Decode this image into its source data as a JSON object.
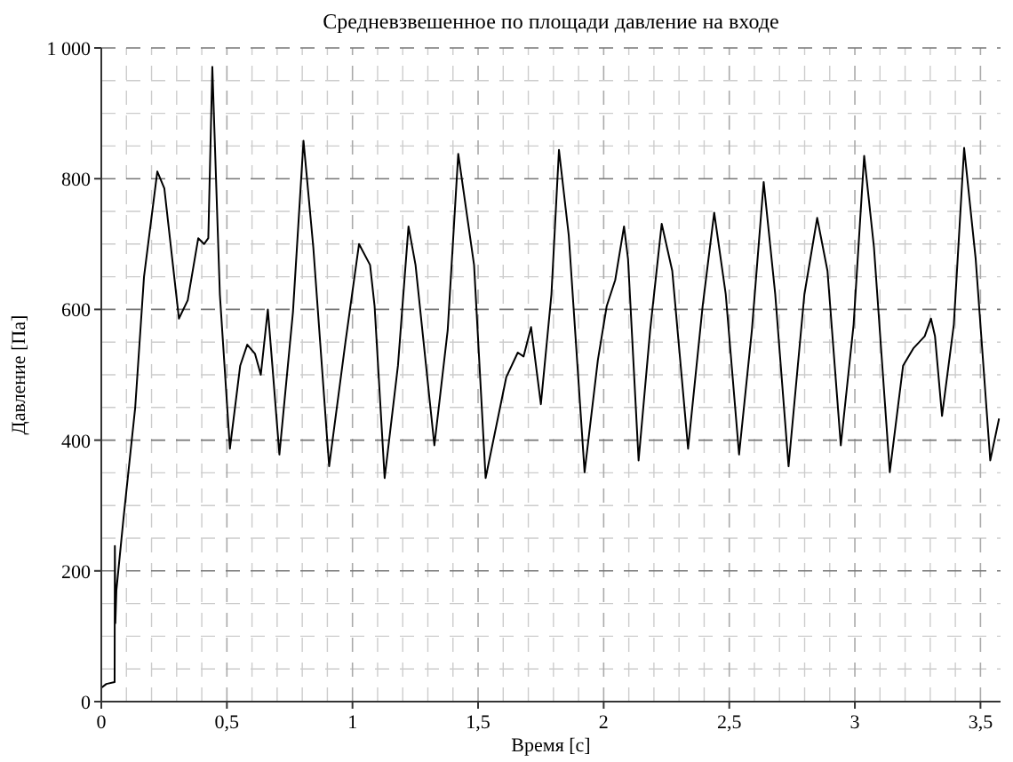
{
  "chart_data": {
    "type": "line",
    "title": "Средневзвешенное по площади давление на входе",
    "xlabel": "Время [с]",
    "ylabel": "Давление [Па]",
    "xlim": [
      0,
      3.58
    ],
    "ylim": [
      0,
      1000
    ],
    "xticks": [
      0,
      {
        "value": 0.5,
        "label": "0,5"
      },
      1,
      {
        "value": 1.5,
        "label": "1,5"
      },
      2,
      {
        "value": 2.5,
        "label": "2,5"
      },
      3,
      {
        "value": 3.5,
        "label": "3,5"
      }
    ],
    "yticks": [
      0,
      200,
      400,
      600,
      800,
      {
        "value": 1000,
        "label": "1 000"
      }
    ],
    "grid": true,
    "marker": "none",
    "line_style": "solid",
    "series": [
      {
        "color": "#000000",
        "x": [
          0,
          0.02,
          0.053,
          0.054,
          0.056,
          0.06,
          0.088,
          0.135,
          0.17,
          0.223,
          0.251,
          0.309,
          0.344,
          0.386,
          0.409,
          0.426,
          0.442,
          0.472,
          0.512,
          0.553,
          0.581,
          0.612,
          0.635,
          0.663,
          0.681,
          0.709,
          0.763,
          0.805,
          0.844,
          0.907,
          0.972,
          1.026,
          1.07,
          1.088,
          1.128,
          1.181,
          1.223,
          1.251,
          1.326,
          1.379,
          1.421,
          1.484,
          1.53,
          1.612,
          1.658,
          1.681,
          1.711,
          1.75,
          1.792,
          1.822,
          1.861,
          1.924,
          1.977,
          2.012,
          2.046,
          2.081,
          2.097,
          2.139,
          2.185,
          2.231,
          2.273,
          2.336,
          2.394,
          2.44,
          2.486,
          2.539,
          2.59,
          2.637,
          2.683,
          2.736,
          2.799,
          2.85,
          2.891,
          2.944,
          2.995,
          3.037,
          3.076,
          3.139,
          3.192,
          3.234,
          3.278,
          3.303,
          3.319,
          3.347,
          3.394,
          3.435,
          3.481,
          3.539,
          3.574
        ],
        "values": [
          21,
          27,
          30,
          238,
          120,
          170,
          279,
          450,
          650,
          811,
          785,
          586,
          614,
          709,
          700,
          709,
          971,
          623,
          387,
          514,
          546,
          532,
          500,
          600,
          514,
          378,
          596,
          858,
          695,
          360,
          550,
          700,
          668,
          605,
          342,
          514,
          727,
          668,
          392,
          568,
          838,
          668,
          342,
          496,
          534,
          528,
          573,
          455,
          623,
          844,
          713,
          351,
          523,
          605,
          645,
          727,
          677,
          369,
          568,
          731,
          659,
          387,
          605,
          748,
          623,
          378,
          568,
          795,
          623,
          360,
          623,
          740,
          659,
          392,
          577,
          835,
          695,
          351,
          514,
          541,
          559,
          586,
          559,
          437,
          577,
          847,
          677,
          369,
          433
        ]
      }
    ]
  }
}
